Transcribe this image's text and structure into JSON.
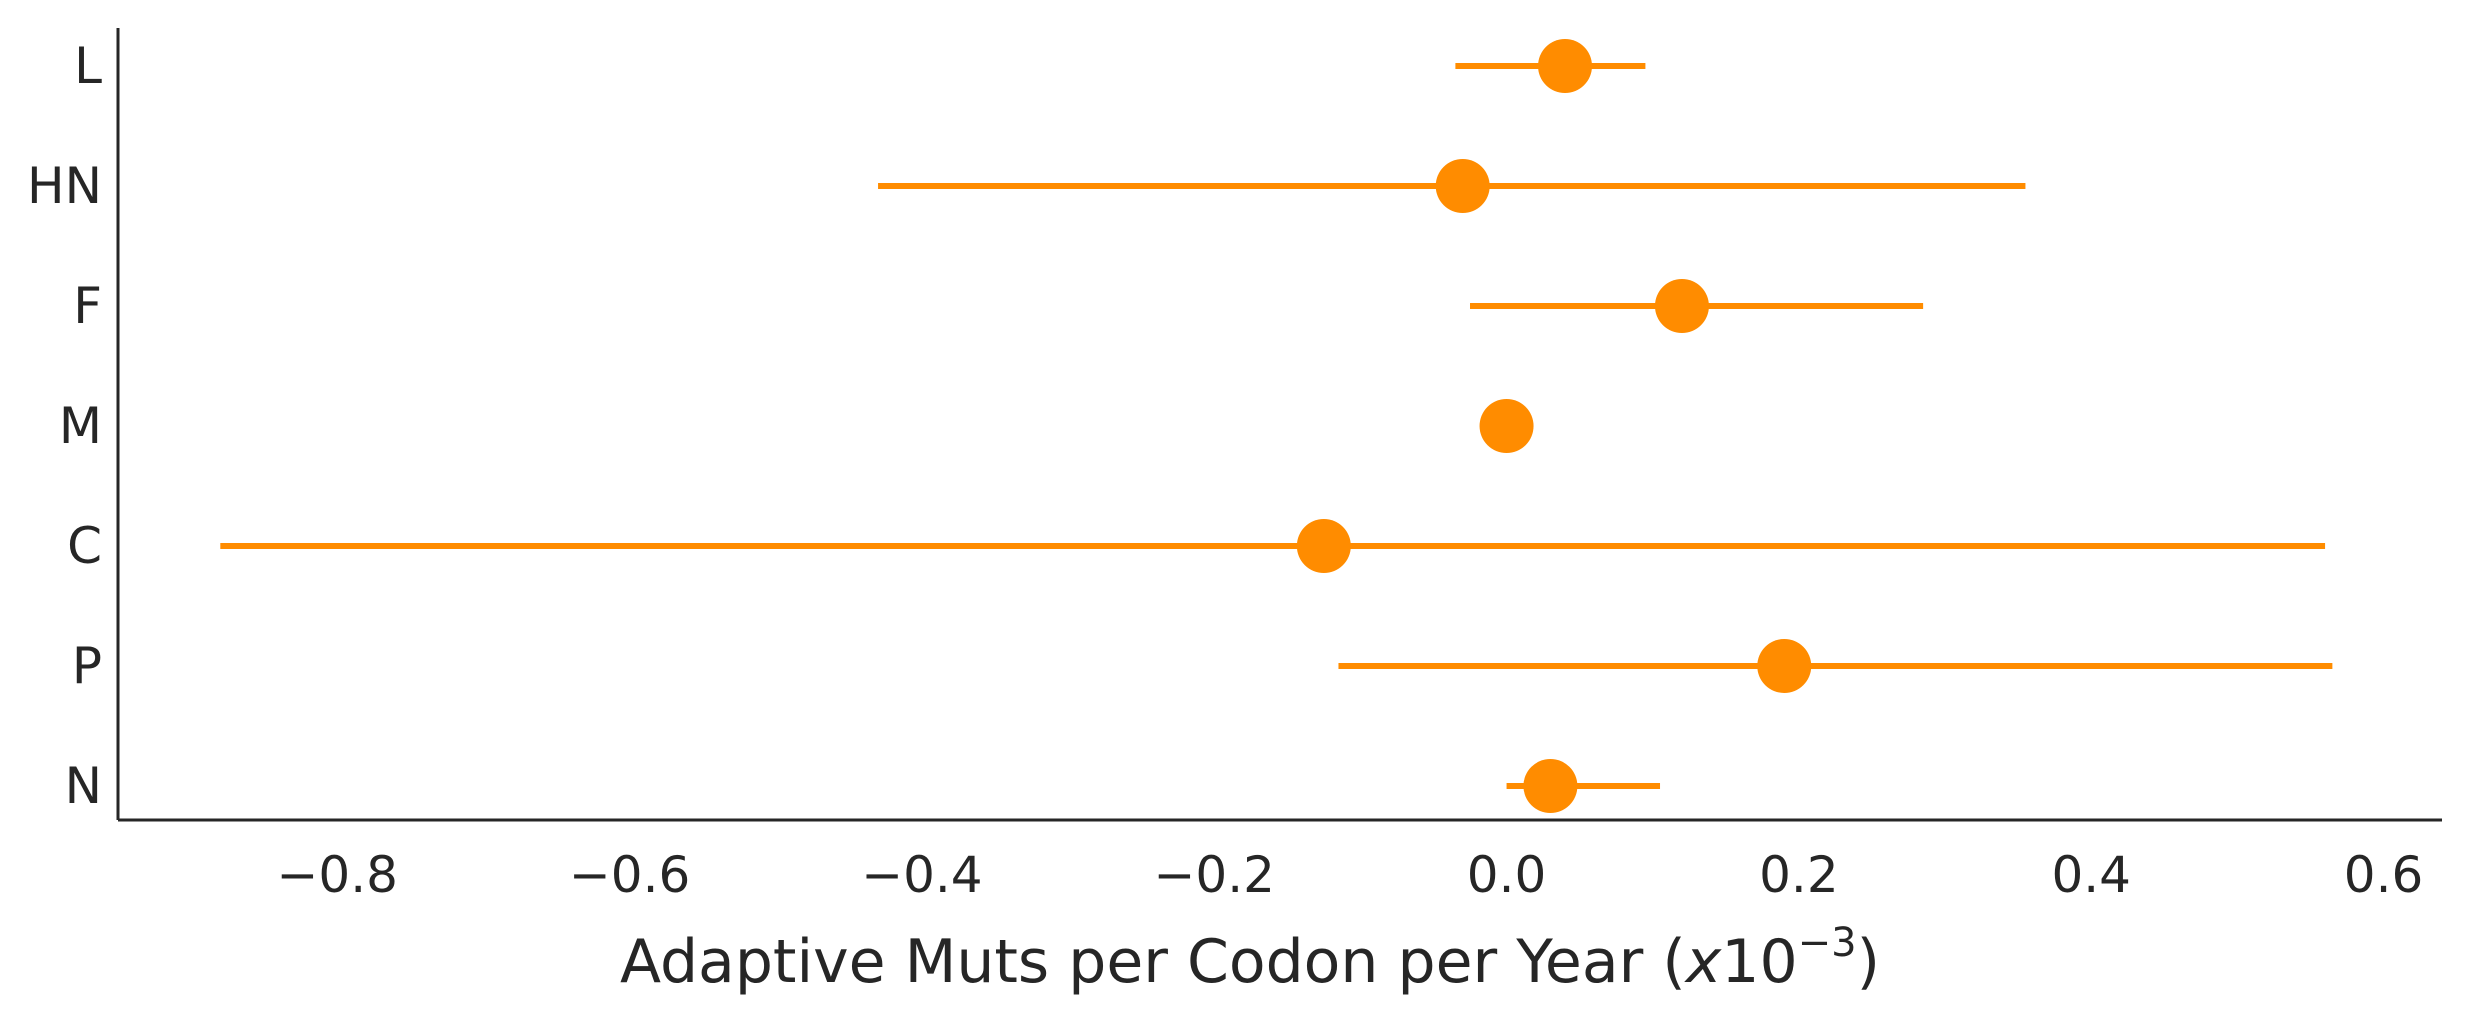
{
  "chart_data": {
    "type": "scatter",
    "orientation": "horizontal",
    "categories": [
      "L",
      "HN",
      "F",
      "M",
      "C",
      "P",
      "N"
    ],
    "series": [
      {
        "estimate": [
          0.04,
          -0.03,
          0.12,
          0.0,
          -0.125,
          0.19,
          0.03
        ],
        "ci_low": [
          -0.035,
          -0.43,
          -0.025,
          0.0,
          -0.88,
          -0.115,
          0.0
        ],
        "ci_high": [
          0.095,
          0.355,
          0.285,
          0.0,
          0.56,
          0.565,
          0.105
        ]
      }
    ],
    "xlabel": {
      "text": "Adaptive Muts per Codon per Year (",
      "unit_italic": "x",
      "unit_base": "10",
      "unit_exponent": "−3",
      "close": ")"
    },
    "xticks": [
      -0.8,
      -0.6,
      -0.4,
      -0.2,
      0.0,
      0.2,
      0.4,
      0.6
    ],
    "xtick_labels": [
      "−0.8",
      "−0.6",
      "−0.4",
      "−0.2",
      "0.0",
      "0.2",
      "0.4",
      "0.6"
    ],
    "xlim": [
      -0.95,
      0.64
    ],
    "grid": false,
    "legend": "none",
    "colors": {
      "marker": "#ff8c00",
      "axis": "#262626"
    }
  }
}
